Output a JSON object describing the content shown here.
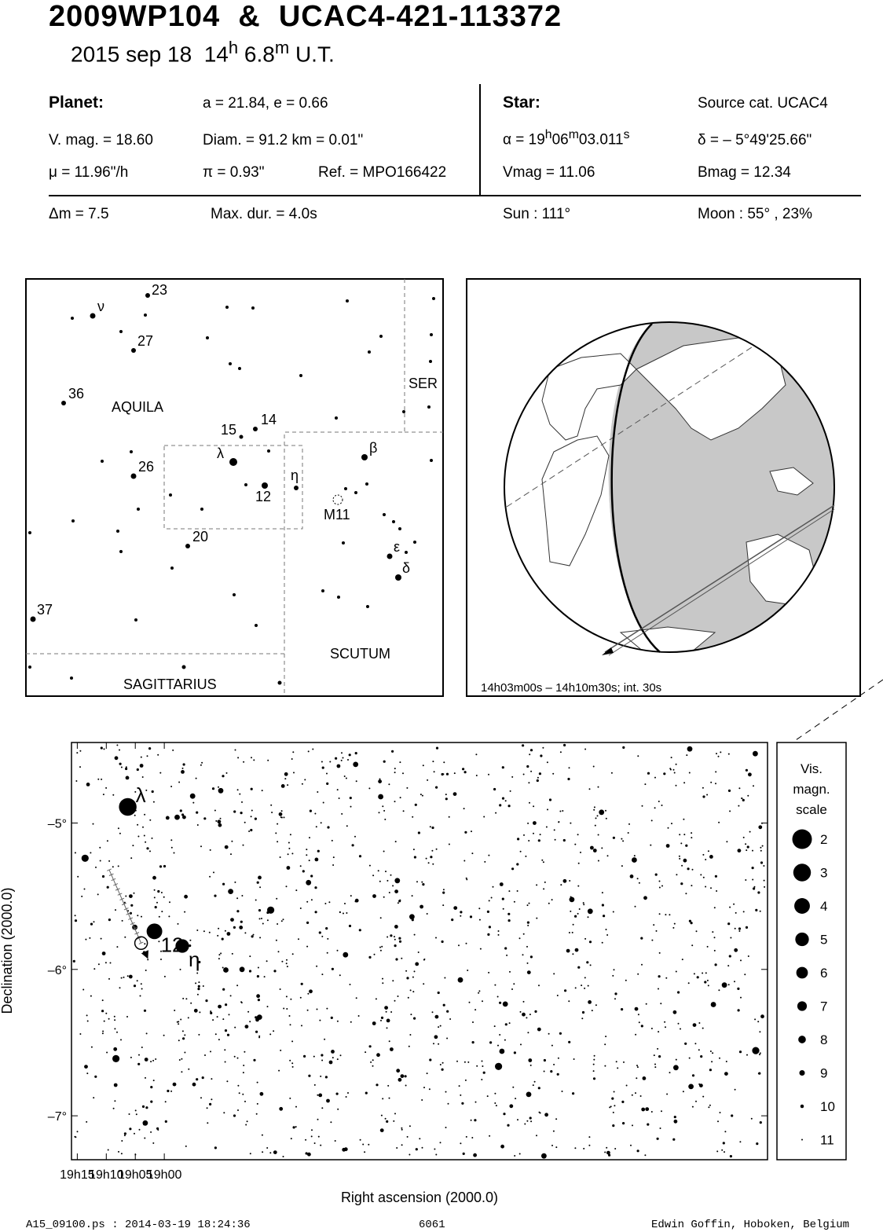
{
  "header": {
    "title": "2009WP104  &  UCAC4-421-113372",
    "date": "2015 sep 18",
    "hour": "14",
    "h_unit": "h",
    "minute": "6.8",
    "m_unit": "m",
    "time_suffix": "U.T."
  },
  "planet": {
    "heading": "Planet:",
    "orbit": "a = 21.84, e = 0.66",
    "vmag": "V. mag. = 18.60",
    "diam": "Diam. = 91.2 km = 0.01\"",
    "mu": "μ =  11.96\"/h",
    "pi": "π =  0.93\"",
    "ref": "Ref. = MPO166422"
  },
  "star": {
    "heading": "Star:",
    "source": "Source cat.  UCAC4",
    "alpha_prefix": "α = 19",
    "alpha_h": "h",
    "alpha_min": "06",
    "alpha_m": "m",
    "alpha_sec": "03.011",
    "alpha_s": "s",
    "delta": "δ = – 5°49'25.66\"",
    "vmag": "Vmag = 11.06",
    "bmag": "Bmag = 12.34"
  },
  "event": {
    "dm": "Δm = 7.5",
    "maxdur": "Max. dur. = 4.0s",
    "sun": "Sun : 111°",
    "moon": "Moon :  55° , 23%"
  },
  "finder": {
    "constellations": [
      "AQUILA",
      "SER",
      "SAGITTARIUS",
      "SCUTUM"
    ],
    "star_labels": [
      "23",
      "ν",
      "27",
      "36",
      "14",
      "15",
      "λ",
      "26",
      "12",
      "η",
      "β",
      "M11",
      "20",
      "ε",
      "δ",
      "37"
    ]
  },
  "globe": {
    "caption": "14h03m00s – 14h10m30s; int. 30s"
  },
  "chart_data": {
    "type": "scatter",
    "xlabel": "Right ascension (2000.0)",
    "ylabel": "Declination (2000.0)",
    "xticks": [
      "19h15",
      "19h10",
      "19h05",
      "19h00"
    ],
    "yticks": [
      "–5°",
      "–6°",
      "–7°"
    ],
    "xlim_min": [
      916,
      796
    ],
    "ylim_deg": [
      -4.45,
      -7.3
    ],
    "path": [
      [
        909.5,
        -5.32
      ],
      [
        904.0,
        -5.82
      ]
    ],
    "target": {
      "x_min": 904.0,
      "y_deg": -5.82
    },
    "named_stars": [
      {
        "label": "λ",
        "x_min": 906.3,
        "y_deg": -4.89,
        "mag": 3
      },
      {
        "label": "12",
        "x_min": 901.7,
        "y_deg": -5.74,
        "mag": 4
      },
      {
        "label": "η",
        "x_min": 896.9,
        "y_deg": -5.84,
        "mag": 5
      }
    ],
    "legend_title": [
      "Vis.",
      "magn.",
      "scale"
    ],
    "legend_mags": [
      "2",
      "3",
      "4",
      "5",
      "6",
      "7",
      "8",
      "9",
      "10",
      "11"
    ]
  },
  "footer": {
    "file": "A15_09100.ps : 2014-03-19 18:24:36",
    "number": "6061",
    "author": "Edwin Goffin, Hoboken, Belgium"
  }
}
